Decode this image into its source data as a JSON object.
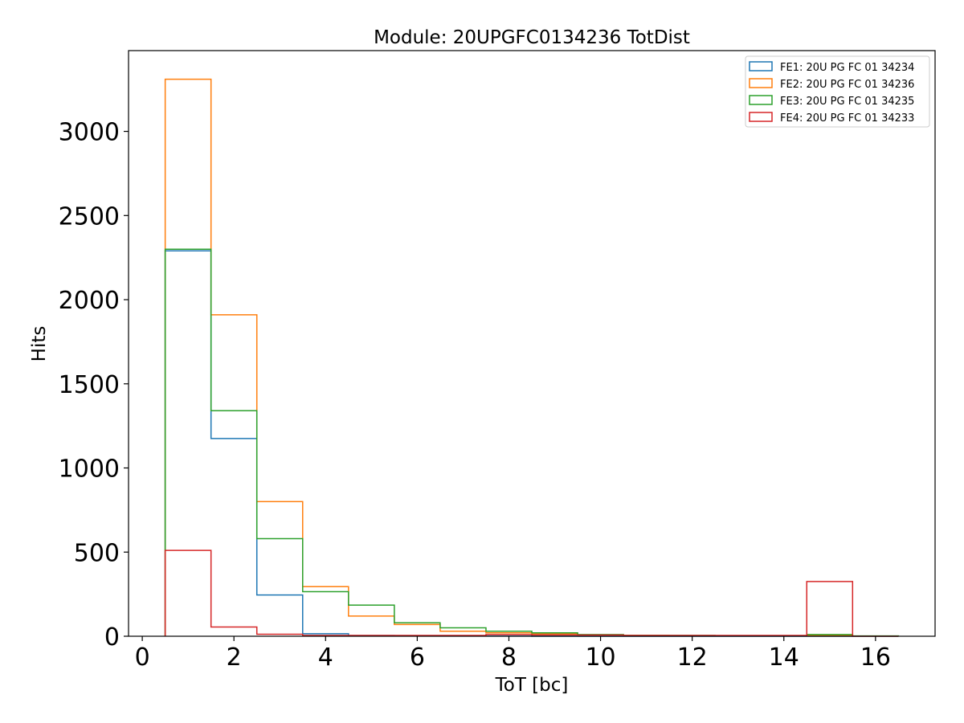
{
  "chart_data": {
    "type": "histogram",
    "title": "Module: 20UPGFC0134236 TotDist",
    "xlabel": "ToT [bc]",
    "ylabel": "Hits",
    "xlim": [
      -0.3,
      17.3
    ],
    "ylim": [
      0,
      3480
    ],
    "x_ticks": [
      0,
      2,
      4,
      6,
      8,
      10,
      12,
      14,
      16
    ],
    "y_ticks": [
      0,
      500,
      1000,
      1500,
      2000,
      2500,
      3000
    ],
    "bin_edges": [
      0.5,
      1.5,
      2.5,
      3.5,
      4.5,
      5.5,
      6.5,
      7.5,
      8.5,
      9.5,
      10.5,
      11.5,
      12.5,
      13.5,
      14.5,
      15.5,
      16.5
    ],
    "legend_position": "top-right",
    "grid": false,
    "series": [
      {
        "name": "FE1: 20U PG FC 01 34234",
        "color": "#1f77b4",
        "values": [
          2290,
          1175,
          245,
          15,
          4,
          2,
          1,
          1,
          0,
          0,
          0,
          0,
          0,
          0,
          0,
          0
        ]
      },
      {
        "name": "FE2: 20U PG FC 01 34236",
        "color": "#ff7f0e",
        "values": [
          3310,
          1910,
          800,
          295,
          120,
          70,
          30,
          20,
          15,
          8,
          5,
          3,
          2,
          1,
          5,
          1
        ]
      },
      {
        "name": "FE3: 20U PG FC 01 34235",
        "color": "#2ca02c",
        "values": [
          2300,
          1340,
          580,
          265,
          185,
          80,
          50,
          30,
          20,
          10,
          5,
          5,
          3,
          3,
          10,
          2
        ]
      },
      {
        "name": "FE4: 20U PG FC 01 34233",
        "color": "#d62728",
        "values": [
          510,
          55,
          12,
          5,
          5,
          5,
          5,
          10,
          8,
          7,
          5,
          5,
          5,
          5,
          325,
          0
        ]
      }
    ]
  }
}
